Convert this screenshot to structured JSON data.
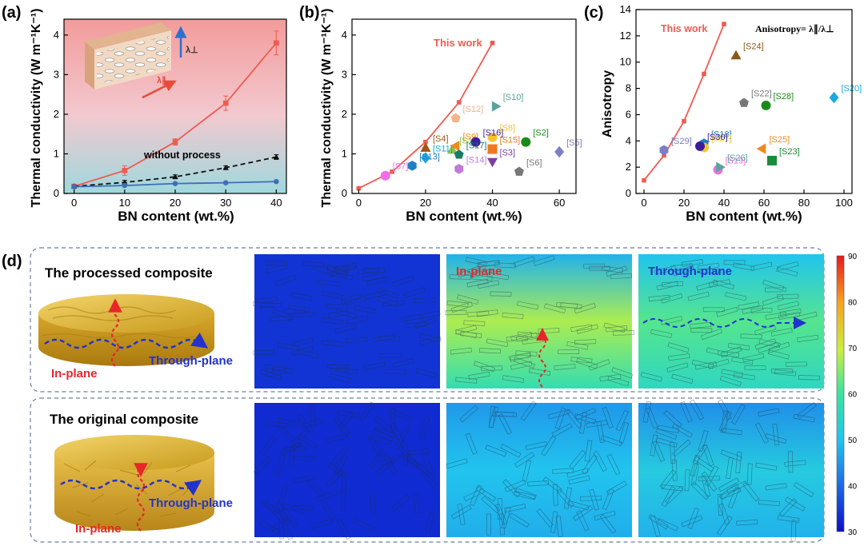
{
  "panel_letters": [
    "(a)",
    "(b)",
    "(c)",
    "(d)"
  ],
  "colors": {
    "processed": "#ef5b51",
    "without": "#111111",
    "blue_line": "#3f6fb3",
    "in_plane": "#e8262a",
    "through_plane": "#2233cc"
  },
  "chart_data": [
    {
      "type": "line",
      "panel": "(a)",
      "xlabel": "BN content (wt.%)",
      "ylabel": "Thermal conductivity (W m⁻¹K⁻¹)",
      "xlim": [
        -2,
        42
      ],
      "ylim": [
        0,
        4.4
      ],
      "xticks": [
        "0",
        "10",
        "20",
        "30",
        "40"
      ],
      "yticks": [
        "0",
        "1",
        "2",
        "3",
        "4"
      ],
      "x": [
        0,
        10,
        20,
        30,
        40
      ],
      "series": [
        {
          "values": [
            0.18,
            0.58,
            1.3,
            2.28,
            3.8
          ],
          "errors": [
            0.05,
            0.12,
            0.08,
            0.18,
            0.3
          ],
          "color": "#ef5b51",
          "marker": "square"
        },
        {
          "name": "without process",
          "values": [
            0.18,
            0.28,
            0.42,
            0.65,
            0.92
          ],
          "errors": [
            0.03,
            0.05,
            0.05,
            0.05,
            0.06
          ],
          "color": "#111111",
          "marker": "triangle",
          "dashed": true
        },
        {
          "values": [
            0.17,
            0.2,
            0.25,
            0.27,
            0.3
          ],
          "color": "#3f6fb3",
          "marker": "circle"
        }
      ],
      "inset_labels": {
        "through": "λ⊥",
        "inplane": "λ∥"
      }
    },
    {
      "type": "scatter",
      "panel": "(b)",
      "xlabel": "BN content (wt.%)",
      "ylabel": "Thermal conductivity (W m⁻¹K⁻¹)",
      "xlim": [
        -2,
        65
      ],
      "ylim": [
        0,
        4.4
      ],
      "xticks": [
        "0",
        "20",
        "40",
        "60"
      ],
      "yticks": [
        "0",
        "1",
        "2",
        "3",
        "4"
      ],
      "this_work_label": "This work",
      "this_work": {
        "x": [
          0,
          10,
          20,
          30,
          40
        ],
        "y": [
          0.13,
          0.55,
          1.3,
          2.3,
          3.8
        ]
      },
      "points": [
        {
          "label": "[S1]",
          "x": 28,
          "y": 1.1,
          "marker": "triangle",
          "color": "#8bc34a"
        },
        {
          "label": "[S2]",
          "x": 50,
          "y": 1.3,
          "marker": "circle",
          "color": "#1b8a1b"
        },
        {
          "label": "[S3]",
          "x": 40,
          "y": 0.8,
          "marker": "triangle-down",
          "color": "#7a3fa0"
        },
        {
          "label": "[S4]",
          "x": 20,
          "y": 1.15,
          "marker": "triangle",
          "color": "#a0561a"
        },
        {
          "label": "[S5]",
          "x": 60,
          "y": 1.05,
          "marker": "diamond",
          "color": "#7b7fc4"
        },
        {
          "label": "[S6]",
          "x": 48,
          "y": 0.55,
          "marker": "pentagon",
          "color": "#777777"
        },
        {
          "label": "[S7]",
          "x": 8,
          "y": 0.45,
          "marker": "circle",
          "color": "#f06ee8"
        },
        {
          "label": "[S8]",
          "x": 40,
          "y": 1.42,
          "marker": "circle",
          "color": "#f9c52c"
        },
        {
          "label": "[S9]",
          "x": 29,
          "y": 1.2,
          "marker": "triangle-left",
          "color": "#f08a1a"
        },
        {
          "label": "[S10]",
          "x": 41,
          "y": 2.2,
          "marker": "triangle-right",
          "color": "#5aa39b"
        },
        {
          "label": "[S11]",
          "x": 20,
          "y": 0.9,
          "marker": "diamond",
          "color": "#1ea8e0"
        },
        {
          "label": "[S12]",
          "x": 29,
          "y": 1.9,
          "marker": "pentagon",
          "color": "#f6b38a"
        },
        {
          "label": "[S13]",
          "x": 16,
          "y": 0.7,
          "marker": "hexagon",
          "color": "#1f7fc4"
        },
        {
          "label": "[S14]",
          "x": 30,
          "y": 0.62,
          "marker": "hexagon",
          "color": "#c07ad8"
        },
        {
          "label": "[S15]",
          "x": 40,
          "y": 1.12,
          "marker": "square",
          "color": "#f07820"
        },
        {
          "label": "[S16]",
          "x": 35,
          "y": 1.3,
          "marker": "circle",
          "color": "#3a1f99"
        },
        {
          "label": "[S17]",
          "x": 30,
          "y": 0.98,
          "marker": "pentagon",
          "color": "#1a7a6a"
        }
      ]
    },
    {
      "type": "scatter",
      "panel": "(c)",
      "xlabel": "BN content (wt.%)",
      "ylabel": "Anisotropy",
      "xlim": [
        -4,
        104
      ],
      "ylim": [
        0,
        14
      ],
      "xticks": [
        "0",
        "20",
        "40",
        "60",
        "80",
        "100"
      ],
      "yticks": [
        "0",
        "2",
        "4",
        "6",
        "8",
        "10",
        "12",
        "14"
      ],
      "title_formula": "Anisotropy= λ∥/λ⊥",
      "this_work_label": "This work",
      "this_work": {
        "x": [
          0,
          10,
          20,
          30,
          40
        ],
        "y": [
          1.0,
          2.9,
          5.5,
          9.1,
          12.9
        ]
      },
      "points": [
        {
          "label": "[S18]",
          "x": 30,
          "y": 3.8,
          "marker": "hexagon",
          "color": "#1f7fc4"
        },
        {
          "label": "[S19]",
          "x": 37,
          "y": 1.8,
          "marker": "circle",
          "color": "#f06ee8"
        },
        {
          "label": "[S20]",
          "x": 95,
          "y": 7.3,
          "marker": "diamond",
          "color": "#1ea8e0"
        },
        {
          "label": "[S22]",
          "x": 50,
          "y": 6.9,
          "marker": "pentagon",
          "color": "#777777"
        },
        {
          "label": "[S23]",
          "x": 64,
          "y": 2.5,
          "marker": "square",
          "color": "#1b8a3a"
        },
        {
          "label": "[S24]",
          "x": 46,
          "y": 10.5,
          "marker": "triangle",
          "color": "#8a5a1a"
        },
        {
          "label": "[S25]",
          "x": 59,
          "y": 3.4,
          "marker": "triangle-left",
          "color": "#f08a1a"
        },
        {
          "label": "[S26]",
          "x": 38,
          "y": 2.0,
          "marker": "triangle-right",
          "color": "#5aa39b"
        },
        {
          "label": "[S27]",
          "x": 30,
          "y": 3.5,
          "marker": "circle",
          "color": "#f9c52c"
        },
        {
          "label": "[S28]",
          "x": 61,
          "y": 6.7,
          "marker": "circle",
          "color": "#1b8a1b"
        },
        {
          "label": "[S29]",
          "x": 10,
          "y": 3.3,
          "marker": "hexagon",
          "color": "#7b7fc4"
        },
        {
          "label": "[S30]",
          "x": 28,
          "y": 3.6,
          "marker": "circle",
          "color": "#3a1f99"
        }
      ]
    },
    {
      "type": "heatmap",
      "panel": "(d)",
      "colorbar_ticks": [
        "90",
        "80",
        "70",
        "60",
        "50",
        "40",
        "30"
      ],
      "range": [
        30,
        90
      ],
      "rows": [
        {
          "title": "The processed composite",
          "labels": {
            "in_plane": "In-plane",
            "through_plane": "Through-plane"
          },
          "maps": [
            {
              "label": "",
              "base": 34,
              "hot_band": 34
            },
            {
              "label": "In-plane",
              "base": 48,
              "hot_band": 68
            },
            {
              "label": "Through-plane",
              "base": 50,
              "hot_band": 62
            }
          ]
        },
        {
          "title": "The original composite",
          "labels": {
            "in_plane": "In-plane",
            "through_plane": "Through-plane"
          },
          "maps": [
            {
              "label": "",
              "base": 33,
              "hot_band": 33
            },
            {
              "label": "",
              "base": 45,
              "hot_band": 50
            },
            {
              "label": "",
              "base": 44,
              "hot_band": 52
            }
          ]
        }
      ]
    }
  ]
}
